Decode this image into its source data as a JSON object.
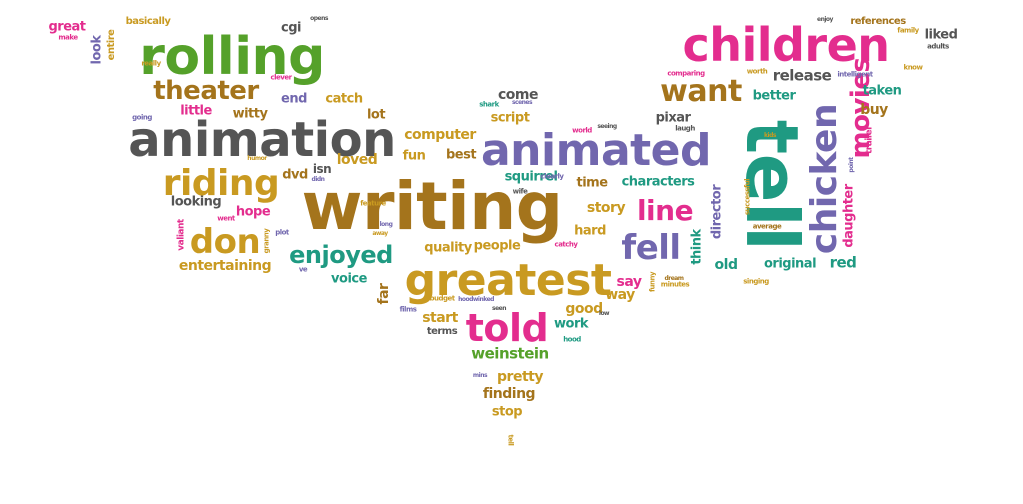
{
  "colors": {
    "green": "#55A12A",
    "pink": "#E32D8E",
    "purple": "#7167AE",
    "gold": "#C99A21",
    "teal": "#1F9A82",
    "olive": "#A4741C",
    "grey": "#555555"
  },
  "words": [
    {
      "text": "tell",
      "color": "teal"
    },
    {
      "text": "writing",
      "color": "olive"
    },
    {
      "text": "rolling",
      "color": "green"
    },
    {
      "text": "children",
      "color": "pink"
    },
    {
      "text": "animation",
      "color": "grey"
    },
    {
      "text": "animated",
      "color": "purple"
    },
    {
      "text": "greatest",
      "color": "gold"
    },
    {
      "text": "chicken",
      "color": "purple"
    },
    {
      "text": "told",
      "color": "pink"
    },
    {
      "text": "movies",
      "color": "pink"
    },
    {
      "text": "riding",
      "color": "gold"
    },
    {
      "text": "don",
      "color": "gold"
    },
    {
      "text": "fell",
      "color": "purple"
    },
    {
      "text": "line",
      "color": "pink"
    },
    {
      "text": "want",
      "color": "olive"
    },
    {
      "text": "theater",
      "color": "olive"
    },
    {
      "text": "enjoyed",
      "color": "teal"
    },
    {
      "text": "weinstein",
      "color": "green"
    },
    {
      "text": "characters",
      "color": "teal"
    },
    {
      "text": "computer",
      "color": "gold"
    },
    {
      "text": "entertaining",
      "color": "gold"
    },
    {
      "text": "squirrel",
      "color": "teal"
    },
    {
      "text": "release",
      "color": "grey"
    },
    {
      "text": "daughter",
      "color": "pink"
    },
    {
      "text": "director",
      "color": "purple"
    },
    {
      "text": "original",
      "color": "teal"
    },
    {
      "text": "quality",
      "color": "gold"
    },
    {
      "text": "people",
      "color": "gold"
    },
    {
      "text": "pretty",
      "color": "gold"
    },
    {
      "text": "finding",
      "color": "olive"
    },
    {
      "text": "story",
      "color": "gold"
    },
    {
      "text": "better",
      "color": "teal"
    },
    {
      "text": "taken",
      "color": "teal"
    },
    {
      "text": "script",
      "color": "gold"
    },
    {
      "text": "come",
      "color": "grey"
    },
    {
      "text": "catch",
      "color": "gold"
    },
    {
      "text": "witty",
      "color": "olive"
    },
    {
      "text": "little",
      "color": "pink"
    },
    {
      "text": "loved",
      "color": "gold"
    },
    {
      "text": "looking",
      "color": "grey"
    },
    {
      "text": "hope",
      "color": "pink"
    },
    {
      "text": "voice",
      "color": "teal"
    },
    {
      "text": "good",
      "color": "gold"
    },
    {
      "text": "start",
      "color": "gold"
    },
    {
      "text": "work",
      "color": "teal"
    },
    {
      "text": "hard",
      "color": "gold"
    },
    {
      "text": "say",
      "color": "pink"
    },
    {
      "text": "way",
      "color": "gold"
    },
    {
      "text": "red",
      "color": "teal"
    },
    {
      "text": "old",
      "color": "teal"
    },
    {
      "text": "buy",
      "color": "olive"
    },
    {
      "text": "pixar",
      "color": "grey"
    },
    {
      "text": "think",
      "color": "teal"
    },
    {
      "text": "best",
      "color": "olive"
    },
    {
      "text": "fun",
      "color": "gold"
    },
    {
      "text": "lot",
      "color": "olive"
    },
    {
      "text": "end",
      "color": "purple"
    },
    {
      "text": "dvd",
      "color": "olive"
    },
    {
      "text": "isn",
      "color": "grey"
    },
    {
      "text": "time",
      "color": "olive"
    },
    {
      "text": "far",
      "color": "olive"
    },
    {
      "text": "stop",
      "color": "gold"
    },
    {
      "text": "cgi",
      "color": "grey"
    },
    {
      "text": "great",
      "color": "pink"
    },
    {
      "text": "basically",
      "color": "gold"
    },
    {
      "text": "look",
      "color": "purple"
    },
    {
      "text": "entire",
      "color": "gold"
    },
    {
      "text": "liked",
      "color": "grey"
    },
    {
      "text": "references",
      "color": "olive"
    },
    {
      "text": "terms",
      "color": "grey"
    },
    {
      "text": "valiant",
      "color": "pink"
    },
    {
      "text": "trailer",
      "color": "pink"
    },
    {
      "text": "clever",
      "color": "pink"
    },
    {
      "text": "opens",
      "color": "grey"
    },
    {
      "text": "make",
      "color": "pink"
    },
    {
      "text": "really",
      "color": "gold"
    },
    {
      "text": "going",
      "color": "purple"
    },
    {
      "text": "humor",
      "color": "gold"
    },
    {
      "text": "went",
      "color": "pink"
    },
    {
      "text": "plot",
      "color": "purple"
    },
    {
      "text": "granny",
      "color": "gold"
    },
    {
      "text": "ve",
      "color": "purple"
    },
    {
      "text": "long",
      "color": "purple"
    },
    {
      "text": "away",
      "color": "gold"
    },
    {
      "text": "feature",
      "color": "gold"
    },
    {
      "text": "didn",
      "color": "purple"
    },
    {
      "text": "shark",
      "color": "teal"
    },
    {
      "text": "scenes",
      "color": "purple"
    },
    {
      "text": "world",
      "color": "pink"
    },
    {
      "text": "seeing",
      "color": "grey"
    },
    {
      "text": "wife",
      "color": "grey"
    },
    {
      "text": "clearly",
      "color": "purple"
    },
    {
      "text": "catchy",
      "color": "pink"
    },
    {
      "text": "budget",
      "color": "gold"
    },
    {
      "text": "hoodwinked",
      "color": "purple"
    },
    {
      "text": "seen",
      "color": "grey"
    },
    {
      "text": "films",
      "color": "purple"
    },
    {
      "text": "hood",
      "color": "teal"
    },
    {
      "text": "low",
      "color": "grey"
    },
    {
      "text": "minutes",
      "color": "gold"
    },
    {
      "text": "dream",
      "color": "olive"
    },
    {
      "text": "funny",
      "color": "gold"
    },
    {
      "text": "singing",
      "color": "gold"
    },
    {
      "text": "average",
      "color": "olive"
    },
    {
      "text": "successful",
      "color": "gold"
    },
    {
      "text": "laugh",
      "color": "grey"
    },
    {
      "text": "comparing",
      "color": "pink"
    },
    {
      "text": "worth",
      "color": "gold"
    },
    {
      "text": "intelligent",
      "color": "purple"
    },
    {
      "text": "enjoy",
      "color": "grey"
    },
    {
      "text": "family",
      "color": "gold"
    },
    {
      "text": "adults",
      "color": "grey"
    },
    {
      "text": "know",
      "color": "gold"
    },
    {
      "text": "kids",
      "color": "gold"
    },
    {
      "text": "point",
      "color": "purple"
    },
    {
      "text": "mins",
      "color": "purple"
    },
    {
      "text": "tell",
      "color": "gold"
    }
  ]
}
